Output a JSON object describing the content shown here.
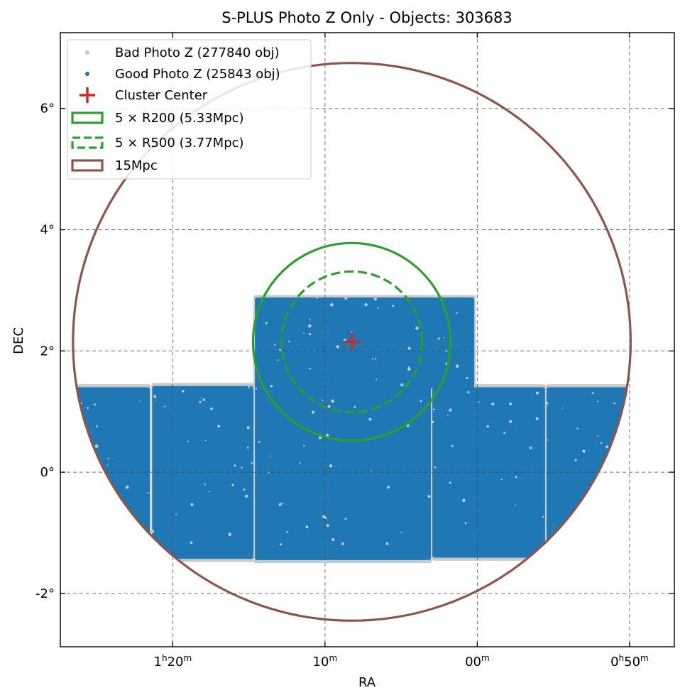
{
  "chart_data": {
    "type": "scatter",
    "title": "S-PLUS Photo Z Only - Objects: 303683",
    "xlabel": "RA",
    "ylabel": "DEC",
    "x_unit": "RA hours-minutes (decreasing to the right)",
    "xlim_minutes": [
      87.38,
      47.06
    ],
    "ylim_deg": [
      -2.88,
      7.25
    ],
    "grid": true,
    "legend_placement": "top-left",
    "x_ticks": [
      {
        "value": 80,
        "h": "1",
        "m": "20",
        "has_hour": true
      },
      {
        "value": 70,
        "h": "",
        "m": "10",
        "has_hour": false
      },
      {
        "value": 60,
        "h": "",
        "m": "00",
        "has_hour": false
      },
      {
        "value": 50,
        "h": "0",
        "m": "50",
        "has_hour": true
      }
    ],
    "y_ticks": [
      {
        "value": -2,
        "label": "-2°"
      },
      {
        "value": 0,
        "label": "0°"
      },
      {
        "value": 2,
        "label": "2°"
      },
      {
        "value": 4,
        "label": "4°"
      },
      {
        "value": 6,
        "label": "6°"
      }
    ],
    "cluster_center": {
      "ra_min": 68.24,
      "dec_deg": 2.15
    },
    "series": [
      {
        "name": "Bad Photo Z (277840 obj)",
        "kind": "points",
        "color": "#c8c8c8",
        "regions": [
          {
            "ra_min": [
              86.95,
              81.45
            ],
            "dec_deg": [
              -1.45,
              1.45
            ]
          },
          {
            "ra_min": [
              81.4,
              74.65
            ],
            "dec_deg": [
              -1.48,
              1.47
            ]
          },
          {
            "ra_min": [
              74.7,
              60.1
            ],
            "dec_deg": [
              1.43,
              2.92
            ]
          },
          {
            "ra_min": [
              74.7,
              63.0
            ],
            "dec_deg": [
              -1.5,
              1.48
            ]
          },
          {
            "ra_min": [
              63.0,
              55.5
            ],
            "dec_deg": [
              -1.46,
              1.45
            ]
          },
          {
            "ra_min": [
              55.5,
              49.5
            ],
            "dec_deg": [
              -1.4,
              1.45
            ]
          }
        ]
      },
      {
        "name": "Good Photo Z (25843 obj)",
        "kind": "points",
        "color": "#1f77b4",
        "regions": [
          {
            "ra_min": [
              86.9,
              81.5
            ],
            "dec_deg": [
              -1.4,
              1.4
            ]
          },
          {
            "ra_min": [
              81.35,
              74.7
            ],
            "dec_deg": [
              -1.43,
              1.42
            ]
          },
          {
            "ra_min": [
              74.6,
              60.2
            ],
            "dec_deg": [
              1.38,
              2.88
            ]
          },
          {
            "ra_min": [
              74.6,
              63.05
            ],
            "dec_deg": [
              -1.45,
              1.43
            ]
          },
          {
            "ra_min": [
              62.95,
              55.55
            ],
            "dec_deg": [
              -1.41,
              1.4
            ]
          },
          {
            "ra_min": [
              55.45,
              49.55
            ],
            "dec_deg": [
              -1.35,
              1.4
            ]
          }
        ]
      },
      {
        "name": "Cluster Center",
        "kind": "marker",
        "color": "#d62728"
      },
      {
        "name": "5 × R200 (5.33Mpc)",
        "kind": "circle",
        "color": "#2ca02c",
        "radius_deg": 1.63,
        "linestyle": "solid"
      },
      {
        "name": "5 × R500 (3.77Mpc)",
        "kind": "circle",
        "color": "#2ca02c",
        "radius_deg": 1.16,
        "linestyle": "dashed"
      },
      {
        "name": "15Mpc",
        "kind": "circle",
        "color": "#8c564b",
        "radius_deg": 4.6,
        "linestyle": "solid"
      }
    ]
  }
}
